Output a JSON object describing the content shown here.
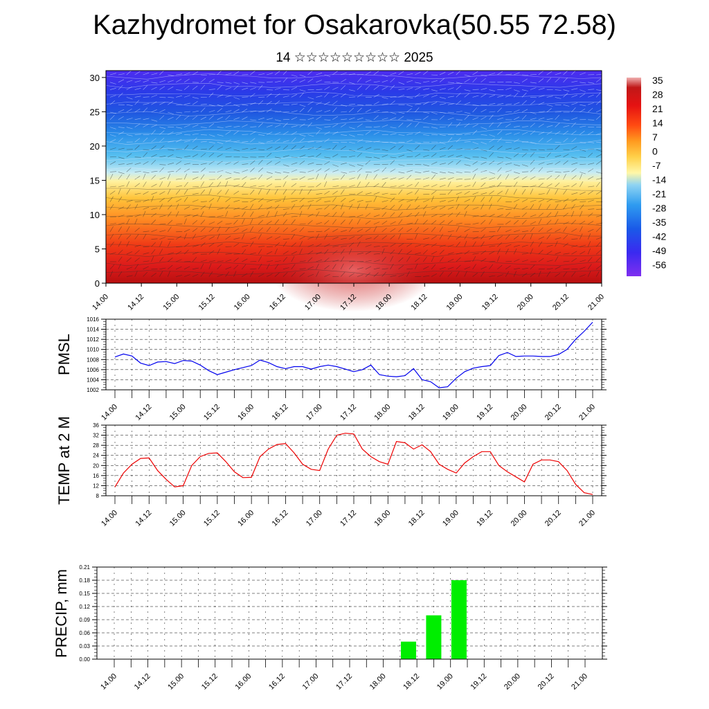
{
  "header": {
    "title": "Kazhydromet for Osakarovka(50.55 72.58)",
    "subtitle": "14 ☆☆☆☆☆☆☆☆☆ 2025"
  },
  "x_ticks": [
    "14.00",
    "14.12",
    "15.00",
    "15.12",
    "16.00",
    "16.12",
    "17.00",
    "17.12",
    "18.00",
    "18.12",
    "19.00",
    "19.12",
    "20.00",
    "20.12",
    "21.00"
  ],
  "colors": {
    "pmsl_line": "#0000ee",
    "temp_line": "#ee0000",
    "precip_bar": "#00ee00",
    "temp_scale": [
      "#7f2ff0",
      "#3a2af0",
      "#1a5ae8",
      "#2f9cf0",
      "#8fd4f2",
      "#fff7a8",
      "#ffd14a",
      "#ff9a1f",
      "#ff4a12",
      "#e51212",
      "#c01818",
      "#f0b0b0"
    ]
  },
  "chart_data": [
    {
      "type": "heatmap",
      "name": "cross-section",
      "ylim": [
        0,
        31
      ],
      "y_ticks": [
        0,
        5,
        10,
        15,
        20,
        25,
        30
      ],
      "colorbar_ticks": [
        "35",
        "28",
        "21",
        "14",
        "7",
        "0",
        "-7",
        "-14",
        "-21",
        "-28",
        "-35",
        "-42",
        "-49",
        "-56"
      ]
    },
    {
      "type": "line",
      "ylabel": "PMSL",
      "ylim": [
        1002,
        1016
      ],
      "y_ticks": [
        1002,
        1004,
        1006,
        1008,
        1010,
        1012,
        1014,
        1016
      ],
      "x_hours": [
        0,
        3,
        6,
        9,
        12,
        15,
        18,
        21,
        24,
        27,
        30,
        33,
        36,
        39,
        42,
        45,
        48,
        51,
        54,
        57,
        60,
        63,
        66,
        69,
        72,
        75,
        78,
        81,
        84,
        87,
        90,
        93,
        96,
        99,
        102,
        105,
        108,
        111,
        114,
        117,
        120,
        123,
        126,
        129,
        132,
        135,
        138,
        141,
        144,
        147,
        150,
        153,
        156,
        159,
        162,
        165,
        168
      ],
      "values": [
        1008.5,
        1009.1,
        1008.7,
        1007.3,
        1006.8,
        1007.5,
        1007.6,
        1007.2,
        1007.8,
        1007.7,
        1006.9,
        1005.8,
        1005.0,
        1005.5,
        1006.0,
        1006.4,
        1006.8,
        1007.9,
        1007.4,
        1006.6,
        1006.2,
        1006.6,
        1006.6,
        1006.1,
        1006.6,
        1006.9,
        1006.6,
        1006.1,
        1005.6,
        1006.0,
        1006.9,
        1005.0,
        1004.7,
        1004.6,
        1004.8,
        1006.2,
        1004.0,
        1003.6,
        1002.4,
        1002.6,
        1004.3,
        1005.6,
        1006.3,
        1006.6,
        1006.8,
        1008.8,
        1009.4,
        1008.6,
        1008.7,
        1008.7,
        1008.6,
        1008.6,
        1009.0,
        1010.0,
        1012.0,
        1013.6,
        1015.4
      ]
    },
    {
      "type": "line",
      "ylabel": "TEMP at 2 M",
      "ylim": [
        8,
        36
      ],
      "y_ticks": [
        8,
        12,
        16,
        20,
        24,
        28,
        32,
        36
      ],
      "x_hours": [
        0,
        3,
        6,
        9,
        12,
        15,
        18,
        21,
        24,
        27,
        30,
        33,
        36,
        39,
        42,
        45,
        48,
        51,
        54,
        57,
        60,
        63,
        66,
        69,
        72,
        75,
        78,
        81,
        84,
        87,
        90,
        93,
        96,
        99,
        102,
        105,
        108,
        111,
        114,
        117,
        120,
        123,
        126,
        129,
        132,
        135,
        138,
        141,
        144,
        147,
        150,
        153,
        156,
        159,
        162,
        165,
        168
      ],
      "values": [
        11.5,
        17,
        20.5,
        22.8,
        23,
        18,
        14.5,
        11.5,
        12,
        20,
        23.5,
        24.8,
        25,
        21.5,
        17.5,
        15.2,
        15.3,
        23.5,
        26.5,
        28.3,
        28.7,
        25,
        20.5,
        18.5,
        18,
        26.5,
        32,
        32.8,
        32.5,
        26.5,
        23.5,
        21.5,
        20.5,
        29.5,
        29,
        26.5,
        28.2,
        25.5,
        20.5,
        18.5,
        17,
        21,
        23.5,
        25.5,
        25.5,
        20,
        17.5,
        15.5,
        13.5,
        20.5,
        22.2,
        22.2,
        21.5,
        18,
        12.5,
        9.2,
        8.5
      ]
    },
    {
      "type": "bar",
      "ylabel": "PRECIP, mm",
      "ylim": [
        0,
        0.21
      ],
      "y_ticks": [
        "0.00",
        "0.03",
        "0.06",
        "0.09",
        "0.12",
        "0.15",
        "0.18",
        "0.21"
      ],
      "x_hours": [
        105,
        114,
        123
      ],
      "values": [
        0.04,
        0.1,
        0.18
      ]
    }
  ]
}
